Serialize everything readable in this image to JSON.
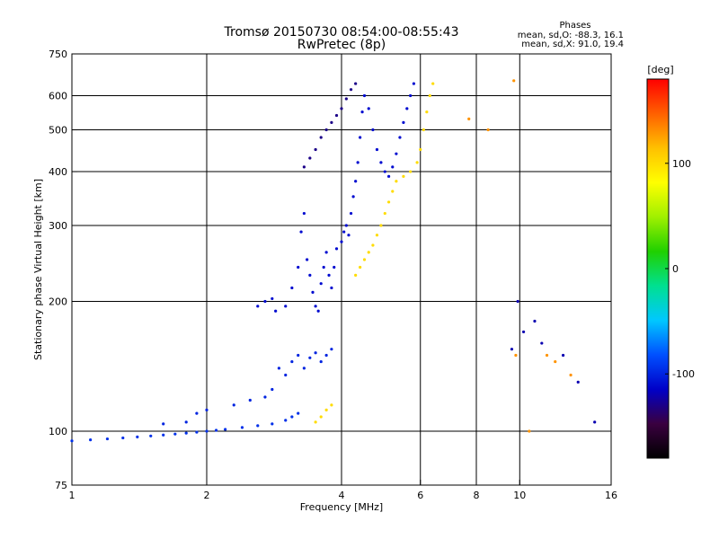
{
  "chart_data": {
    "type": "scatter",
    "title": "Tromsø 20150730 08:54:00-08:55:43",
    "subtitle": "RwPretec (8p)",
    "info": {
      "heading": "Phases",
      "line1": "mean, sd,O: -88.3, 16.1",
      "line2": "mean, sd,X:  91.0, 19.4"
    },
    "xlabel": "Frequency [MHz]",
    "ylabel": "Stationary phase Virtual Height [km]",
    "x_scale": "log",
    "y_scale": "log",
    "xlim": [
      1,
      16
    ],
    "ylim": [
      75,
      750
    ],
    "xticks": [
      {
        "v": 1,
        "label": "1"
      },
      {
        "v": 2,
        "label": "2"
      },
      {
        "v": 4,
        "label": "4"
      },
      {
        "v": 6,
        "label": "6"
      },
      {
        "v": 8,
        "label": "8"
      },
      {
        "v": 10,
        "label": "10"
      },
      {
        "v": 16,
        "label": "16"
      }
    ],
    "yticks": [
      {
        "v": 75,
        "label": "75"
      },
      {
        "v": 100,
        "label": "100"
      },
      {
        "v": 200,
        "label": "200"
      },
      {
        "v": 300,
        "label": "300"
      },
      {
        "v": 400,
        "label": "400"
      },
      {
        "v": 500,
        "label": "500"
      },
      {
        "v": 600,
        "label": "600"
      },
      {
        "v": 750,
        "label": "750"
      }
    ],
    "x_gridlines": [
      2,
      4,
      6,
      8,
      10
    ],
    "y_gridlines": [
      100,
      200,
      300,
      400,
      500,
      600
    ],
    "grid": true,
    "colorbar": {
      "label": "[deg]",
      "range": [
        -180,
        180
      ],
      "ticks": [
        {
          "v": 100,
          "label": "100"
        },
        {
          "v": 0,
          "label": "0"
        },
        {
          "v": -100,
          "label": "-100"
        }
      ],
      "colors": [
        "#000000",
        "#3a0040",
        "#0000c8",
        "#0050ff",
        "#00c8ff",
        "#00e090",
        "#20d000",
        "#a0f000",
        "#ffff00",
        "#ffc000",
        "#ff6000",
        "#ff0000"
      ]
    },
    "traces": [
      {
        "name": "",
        "phase": -95,
        "points": [
          [
            1,
            95
          ],
          [
            1.1,
            95.5
          ],
          [
            1.2,
            96
          ],
          [
            1.3,
            96.5
          ],
          [
            1.4,
            97
          ],
          [
            1.5,
            97.5
          ],
          [
            1.6,
            98
          ],
          [
            1.7,
            98.5
          ],
          [
            1.8,
            99
          ],
          [
            1.9,
            99.5
          ],
          [
            2.0,
            100
          ],
          [
            2.1,
            100.5
          ],
          [
            2.2,
            101
          ],
          [
            2.4,
            102
          ],
          [
            2.6,
            103
          ],
          [
            2.8,
            104
          ],
          [
            3.0,
            106
          ],
          [
            3.1,
            108
          ],
          [
            3.2,
            110
          ]
        ]
      },
      {
        "name": "",
        "phase": -100,
        "points": [
          [
            1.6,
            104
          ],
          [
            1.8,
            105
          ],
          [
            1.9,
            110
          ],
          [
            2.0,
            112
          ],
          [
            2.3,
            115
          ],
          [
            2.5,
            118
          ],
          [
            2.7,
            120
          ],
          [
            2.8,
            125
          ],
          [
            2.9,
            140
          ],
          [
            3.0,
            135
          ],
          [
            3.1,
            145
          ],
          [
            3.2,
            150
          ],
          [
            3.3,
            140
          ],
          [
            3.4,
            148
          ],
          [
            3.5,
            152
          ],
          [
            3.6,
            145
          ],
          [
            3.7,
            150
          ],
          [
            3.8,
            155
          ]
        ]
      },
      {
        "name": "",
        "phase": -110,
        "points": [
          [
            2.6,
            195
          ],
          [
            2.7,
            200
          ],
          [
            2.8,
            203
          ],
          [
            2.85,
            190
          ],
          [
            3.0,
            195
          ],
          [
            3.1,
            215
          ],
          [
            3.2,
            240
          ],
          [
            3.25,
            290
          ],
          [
            3.3,
            320
          ],
          [
            3.35,
            250
          ],
          [
            3.4,
            230
          ],
          [
            3.45,
            210
          ],
          [
            3.5,
            195
          ],
          [
            3.55,
            190
          ],
          [
            3.6,
            220
          ],
          [
            3.65,
            240
          ],
          [
            3.7,
            260
          ],
          [
            3.75,
            230
          ],
          [
            3.8,
            215
          ],
          [
            3.85,
            240
          ],
          [
            3.9,
            265
          ],
          [
            4.0,
            275
          ],
          [
            4.05,
            290
          ],
          [
            4.1,
            300
          ],
          [
            4.15,
            285
          ],
          [
            4.2,
            320
          ],
          [
            4.25,
            350
          ],
          [
            4.3,
            380
          ],
          [
            4.35,
            420
          ],
          [
            4.4,
            480
          ],
          [
            4.45,
            550
          ],
          [
            4.5,
            600
          ],
          [
            4.6,
            560
          ],
          [
            4.7,
            500
          ],
          [
            4.8,
            450
          ],
          [
            4.9,
            420
          ],
          [
            5.0,
            400
          ],
          [
            5.1,
            390
          ],
          [
            5.2,
            410
          ],
          [
            5.3,
            440
          ],
          [
            5.4,
            480
          ],
          [
            5.5,
            520
          ],
          [
            5.6,
            560
          ],
          [
            5.7,
            600
          ],
          [
            5.8,
            640
          ]
        ]
      },
      {
        "name": "",
        "phase": -130,
        "points": [
          [
            3.3,
            410
          ],
          [
            3.4,
            430
          ],
          [
            3.5,
            450
          ],
          [
            3.6,
            480
          ],
          [
            3.7,
            500
          ],
          [
            3.8,
            520
          ],
          [
            3.9,
            540
          ],
          [
            4.0,
            560
          ],
          [
            4.1,
            590
          ],
          [
            4.2,
            620
          ],
          [
            4.3,
            640
          ]
        ]
      },
      {
        "name": "",
        "phase": 100,
        "points": [
          [
            3.5,
            105
          ],
          [
            3.6,
            108
          ],
          [
            3.7,
            112
          ],
          [
            3.8,
            115
          ],
          [
            4.3,
            230
          ],
          [
            4.4,
            240
          ],
          [
            4.5,
            250
          ],
          [
            4.6,
            260
          ],
          [
            4.7,
            270
          ],
          [
            4.8,
            285
          ],
          [
            4.9,
            300
          ],
          [
            5.0,
            320
          ],
          [
            5.1,
            340
          ],
          [
            5.2,
            360
          ],
          [
            5.3,
            380
          ],
          [
            5.5,
            390
          ],
          [
            5.7,
            400
          ],
          [
            5.9,
            420
          ],
          [
            6.0,
            450
          ],
          [
            6.1,
            500
          ],
          [
            6.2,
            550
          ],
          [
            6.3,
            600
          ],
          [
            6.4,
            640
          ]
        ]
      },
      {
        "name": "",
        "phase": 130,
        "points": [
          [
            7.7,
            530
          ],
          [
            8.5,
            500
          ],
          [
            9.7,
            650
          ],
          [
            9.8,
            150
          ],
          [
            10.5,
            100
          ],
          [
            11.5,
            150
          ],
          [
            12,
            145
          ],
          [
            13,
            135
          ]
        ]
      },
      {
        "name": "",
        "phase": -120,
        "points": [
          [
            9.6,
            155
          ],
          [
            9.9,
            200
          ],
          [
            10.2,
            170
          ],
          [
            10.8,
            180
          ],
          [
            11.2,
            160
          ],
          [
            12.5,
            150
          ],
          [
            13.5,
            130
          ],
          [
            14.7,
            105
          ]
        ]
      }
    ]
  }
}
